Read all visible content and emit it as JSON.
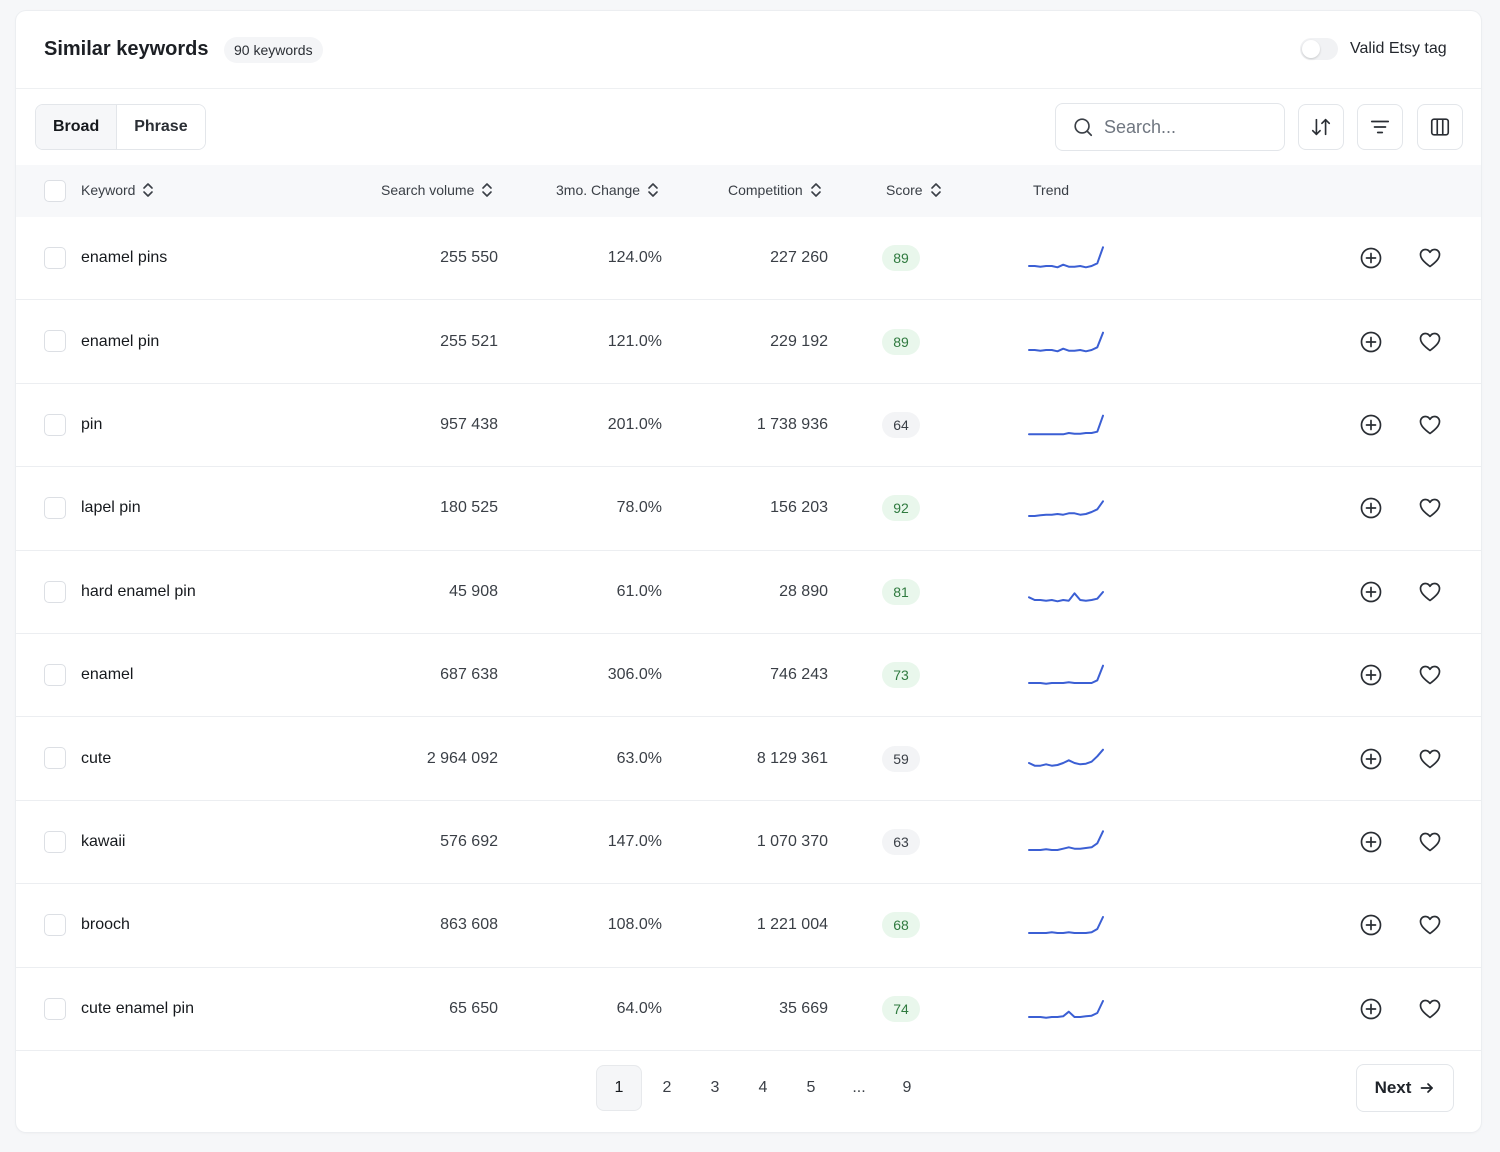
{
  "header": {
    "title": "Similar keywords",
    "count_badge": "90 keywords",
    "toggle_label": "Valid Etsy tag"
  },
  "toolbar": {
    "segments": [
      {
        "label": "Broad",
        "active": true
      },
      {
        "label": "Phrase",
        "active": false
      }
    ],
    "search_placeholder": "Search...",
    "buttons": [
      "sort-icon",
      "filter-icon",
      "columns-icon"
    ]
  },
  "table": {
    "columns": {
      "keyword": "Keyword",
      "search_volume": "Search volume",
      "change": "3mo. Change",
      "competition": "Competition",
      "score": "Score",
      "trend": "Trend"
    },
    "rows": [
      {
        "keyword": "enamel pins",
        "volume": "255 550",
        "change": "124.0%",
        "competition": "227 260",
        "score": "89",
        "good": true,
        "trend": [
          3,
          3,
          2.5,
          3,
          3,
          2,
          4,
          2.5,
          2.5,
          3,
          2,
          3,
          5,
          17
        ]
      },
      {
        "keyword": "enamel pin",
        "volume": "255 521",
        "change": "121.0%",
        "competition": "229 192",
        "score": "89",
        "good": true,
        "trend": [
          3,
          3,
          2.5,
          3,
          3,
          2,
          4,
          2.5,
          2.5,
          3,
          2,
          3,
          5,
          16
        ]
      },
      {
        "keyword": "pin",
        "volume": "957 438",
        "change": "201.0%",
        "competition": "1 738 936",
        "score": "64",
        "good": false,
        "trend": [
          2,
          2,
          2,
          2,
          2,
          2,
          2,
          3,
          2.5,
          2.5,
          3,
          3,
          4,
          16
        ]
      },
      {
        "keyword": "lapel pin",
        "volume": "180 525",
        "change": "78.0%",
        "competition": "156 203",
        "score": "92",
        "good": true,
        "trend": [
          3,
          3,
          3.5,
          4,
          4,
          4.5,
          4,
          5,
          5,
          4,
          4.5,
          6,
          8,
          14
        ]
      },
      {
        "keyword": "hard enamel pin",
        "volume": "45 908",
        "change": "61.0%",
        "competition": "28 890",
        "score": "81",
        "good": true,
        "trend": [
          5,
          3,
          3,
          2.5,
          3,
          2,
          3,
          2.5,
          8,
          3,
          2.5,
          3,
          4,
          9
        ]
      },
      {
        "keyword": "enamel",
        "volume": "687 638",
        "change": "306.0%",
        "competition": "746 243",
        "score": "73",
        "good": true,
        "trend": [
          3,
          3,
          3,
          2.5,
          3,
          3,
          3,
          3.5,
          3,
          3,
          3,
          3,
          5,
          16
        ]
      },
      {
        "keyword": "cute",
        "volume": "2 964 092",
        "change": "63.0%",
        "competition": "8 129 361",
        "score": "59",
        "good": false,
        "trend": [
          6,
          4,
          4,
          5,
          4,
          4.5,
          6,
          8,
          6,
          5,
          5.5,
          7,
          11,
          16
        ]
      },
      {
        "keyword": "kawaii",
        "volume": "576 692",
        "change": "147.0%",
        "competition": "1 070 370",
        "score": "63",
        "good": false,
        "trend": [
          3,
          3,
          3,
          3.5,
          3,
          3,
          4,
          5,
          4,
          4,
          4.5,
          5,
          8,
          17
        ]
      },
      {
        "keyword": "brooch",
        "volume": "863 608",
        "change": "108.0%",
        "competition": "1 221 004",
        "score": "68",
        "good": true,
        "trend": [
          3,
          3,
          3,
          3,
          3.5,
          3,
          3,
          3.5,
          3,
          3,
          3,
          3.5,
          6,
          15
        ]
      },
      {
        "keyword": "cute enamel pin",
        "volume": "65 650",
        "change": "64.0%",
        "competition": "35 669",
        "score": "74",
        "good": true,
        "trend": [
          3,
          3,
          3,
          2.5,
          3,
          3,
          3.5,
          7,
          3,
          3,
          3.5,
          4,
          6,
          15
        ]
      }
    ]
  },
  "pagination": {
    "pages": [
      "1",
      "2",
      "3",
      "4",
      "5",
      "...",
      "9"
    ],
    "current": "1",
    "next_label": "Next"
  },
  "colors": {
    "trend_line": "#3b5fd4",
    "score_good_bg": "#e9f7ec",
    "score_good_text": "#2f7a3f"
  }
}
